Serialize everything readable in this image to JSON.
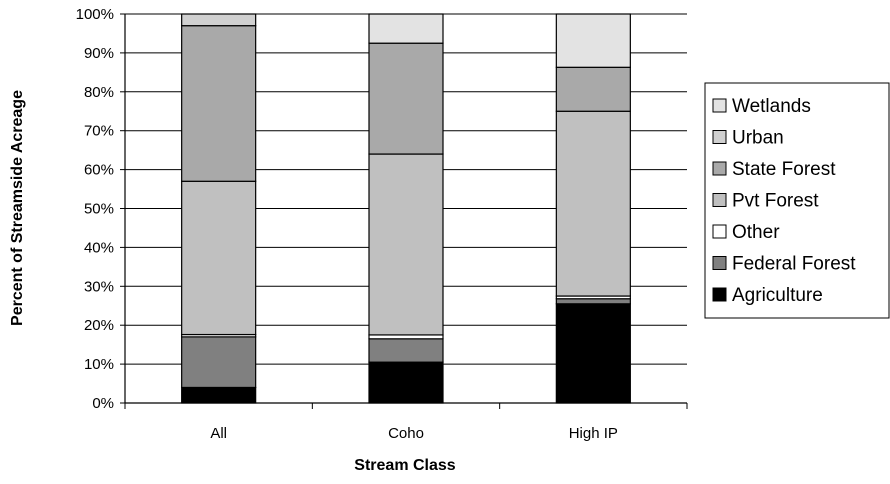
{
  "chart_data": {
    "type": "bar",
    "stacked": true,
    "percent": true,
    "title": "",
    "xlabel": "Stream Class",
    "ylabel": "Percent of Streamside Acreage",
    "categories": [
      "All",
      "Coho",
      "High IP"
    ],
    "ylim": [
      0,
      100
    ],
    "yticks": [
      0,
      10,
      20,
      30,
      40,
      50,
      60,
      70,
      80,
      90,
      100
    ],
    "ytick_suffix": "%",
    "grid": "horizontal",
    "legend_position": "right",
    "series": [
      {
        "name": "Agriculture",
        "color": "#000000",
        "values": [
          4,
          10.5,
          25.5
        ]
      },
      {
        "name": "Federal Forest",
        "color": "#808080",
        "values": [
          13,
          6,
          1.3
        ]
      },
      {
        "name": "Other",
        "color": "#ffffff",
        "values": [
          0.6,
          1,
          0.7
        ]
      },
      {
        "name": "Pvt Forest",
        "color": "#c0c0c0",
        "values": [
          39.4,
          46.5,
          47.5
        ]
      },
      {
        "name": "State Forest",
        "color": "#a9a9a9",
        "values": [
          40,
          28.5,
          11.3
        ]
      },
      {
        "name": "Urban",
        "color": "#d0d0d0",
        "values": [
          3,
          0,
          0
        ]
      },
      {
        "name": "Wetlands",
        "color": "#e3e3e3",
        "values": [
          0,
          7.5,
          13.7
        ]
      }
    ]
  }
}
